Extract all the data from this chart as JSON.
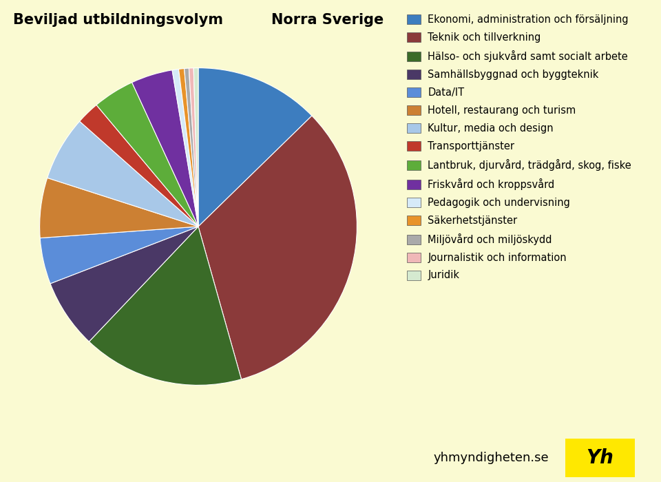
{
  "title_left": "Beviljad utbildningsvolym",
  "title_right": "Norra Sverige",
  "bg_color": "#FAFAD2",
  "labels": [
    "Ekonomi, administration och försäljning",
    "Teknik och tillverkning",
    "Hälso- och sjukvård samt socialt arbete",
    "Samhällsbyggnad och byggteknik",
    "Data/IT",
    "Hotell, restaurang och turism",
    "Kultur, media och design",
    "Transporttjänster",
    "Lantbruk, djurvård, trädgård, skog, fiske",
    "Friskvård och kroppsvård",
    "Pedagogik och undervisning",
    "Säkerhetstjänster",
    "Miljövård och miljöskydd",
    "Journalistik och information",
    "Juridik"
  ],
  "colors": [
    "#3D7DBF",
    "#8B3A3A",
    "#3A6B28",
    "#4A3866",
    "#5B8DD9",
    "#CC8033",
    "#A8C8E8",
    "#C0392B",
    "#5DAD3A",
    "#7030A0",
    "#D6EAF8",
    "#E8932A",
    "#AAAAAA",
    "#F0B8B8",
    "#D5EAD0"
  ],
  "sizes": [
    13.5,
    35.0,
    17.5,
    7.5,
    5.0,
    6.5,
    7.0,
    2.5,
    4.5,
    4.5,
    0.7,
    0.6,
    0.5,
    0.5,
    0.5
  ],
  "startangle": 90,
  "footer_text": "yhmyndigheten.se",
  "footer_label": "Yh",
  "footer_bg": "#FFE800"
}
